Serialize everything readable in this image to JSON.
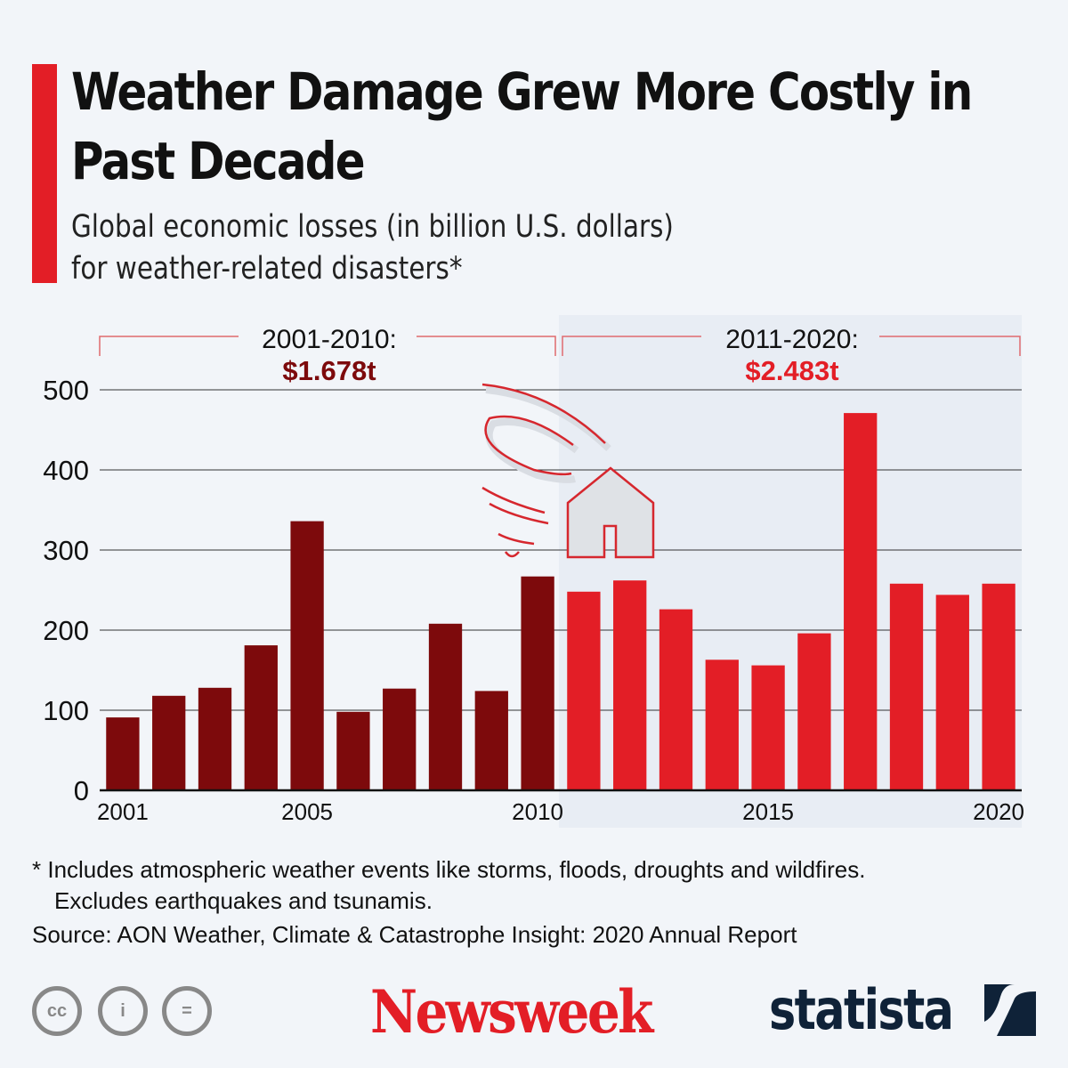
{
  "header": {
    "title_lines": [
      "Weather Damage Grew More Costly in",
      "Past Decade"
    ],
    "subtitle_lines": [
      "Global economic losses (in billion U.S. dollars)",
      "for weather-related disasters*"
    ]
  },
  "decades": [
    {
      "label": "2001-2010:",
      "total": "$1.678t",
      "color": "#7d0a0c"
    },
    {
      "label": "2011-2020:",
      "total": "$2.483t",
      "color": "#e31e26"
    }
  ],
  "chart_data": {
    "type": "bar",
    "title": "Weather Damage Grew More Costly in Past Decade",
    "ylabel": "Global economic losses (in billion U.S. dollars)",
    "xlabel": "",
    "ylim": [
      0,
      500
    ],
    "yticks": [
      0,
      100,
      200,
      300,
      400,
      500
    ],
    "grid": true,
    "categories": [
      "2001",
      "2002",
      "2003",
      "2004",
      "2005",
      "2006",
      "2007",
      "2008",
      "2009",
      "2010",
      "2011",
      "2012",
      "2013",
      "2014",
      "2015",
      "2016",
      "2017",
      "2018",
      "2019",
      "2020"
    ],
    "xtick_labels": {
      "0": "2001",
      "4": "2005",
      "9": "2010",
      "14": "2015",
      "19": "2020"
    },
    "values": [
      91,
      118,
      128,
      181,
      336,
      98,
      127,
      208,
      124,
      267,
      248,
      262,
      226,
      163,
      156,
      196,
      471,
      258,
      244,
      258
    ],
    "colors": {
      "2001-2010": "#7d0a0c",
      "2011-2020": "#e31e26"
    },
    "annotations": [
      {
        "range": "2001-2010",
        "text": "2001-2010: $1.678t"
      },
      {
        "range": "2011-2020",
        "text": "2011-2020: $2.483t"
      }
    ]
  },
  "footer": {
    "footnote_lines": [
      "* Includes atmospheric weather events like storms, floods, droughts and wildfires.",
      "Excludes earthquakes and tsunamis."
    ],
    "source": "Source: AON Weather, Climate & Catastrophe Insight: 2020 Annual Report",
    "license_icons": [
      "cc",
      "i",
      "="
    ],
    "brand_newsweek": "Newsweek",
    "brand_statista": "statista"
  }
}
